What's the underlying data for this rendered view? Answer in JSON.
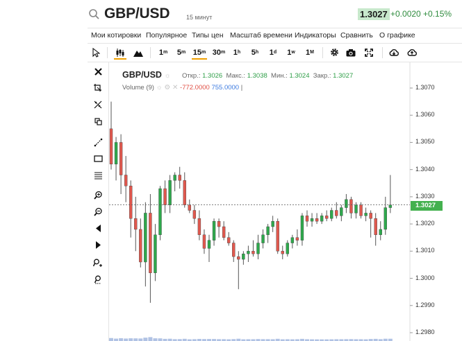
{
  "header": {
    "symbol": "GBP/USD",
    "period": "15 минут",
    "last_price": "1.3027",
    "change": "+0.0020",
    "change_pct": "+0.15%"
  },
  "menu": [
    "Мои котировки",
    "Популярное",
    "Типы цен",
    "Масштаб времени",
    "Индикаторы",
    "Сравнить",
    "О графике"
  ],
  "toolbar": {
    "timeframes": [
      {
        "n": "1",
        "u": "m"
      },
      {
        "n": "5",
        "u": "m"
      },
      {
        "n": "15",
        "u": "m"
      },
      {
        "n": "30",
        "u": "m"
      },
      {
        "n": "1",
        "u": "h"
      },
      {
        "n": "5",
        "u": "h"
      },
      {
        "n": "1",
        "u": "d"
      },
      {
        "n": "1",
        "u": "w"
      },
      {
        "n": "1",
        "u": "M"
      }
    ],
    "active_timeframe": "15m",
    "tool_icons": [
      "cursor-icon",
      "candles-icon",
      "mountain-icon",
      "gear-icon",
      "camera-icon",
      "fullscreen-icon",
      "cloud-download-icon",
      "cloud-upload-icon"
    ]
  },
  "left_tools": [
    "close-icon",
    "crop-icon",
    "magnet-icon",
    "copy-icon",
    "trend-line-icon",
    "rectangle-icon",
    "horizontal-lines-icon",
    "zoom-in-icon",
    "zoom-out-icon",
    "scroll-left-icon",
    "scroll-right-icon",
    "pointer-plus-icon",
    "pointer-reset-icon"
  ],
  "legend": {
    "symbol": "GBP/USD",
    "open_label": "Откр.:",
    "open": "1.3026",
    "high_label": "Макс.:",
    "high": "1.3038",
    "low_label": "Мин.:",
    "low": "1.3024",
    "close_label": "Закр.:",
    "close": "1.3027",
    "volume_label": "Volume (9)",
    "volume_neg": "-772.0000",
    "volume_pos": "755.0000"
  },
  "chart_data": {
    "type": "candlestick",
    "y_axis": {
      "ticks": [
        "1.3070",
        "1.3060",
        "1.3050",
        "1.3040",
        "1.3030",
        "1.3020",
        "1.3010",
        "1.3000",
        "1.2990",
        "1.2980"
      ],
      "range": [
        1.2978,
        1.3077
      ]
    },
    "last_price": 1.3027,
    "last_price_label": "1.3027",
    "colors": {
      "up": "#2ea84c",
      "down": "#e0584e",
      "wick": "#555555"
    },
    "candles": [
      {
        "o": 1.3055,
        "h": 1.3065,
        "l": 1.304,
        "c": 1.3042
      },
      {
        "o": 1.3042,
        "h": 1.3052,
        "l": 1.3036,
        "c": 1.305
      },
      {
        "o": 1.305,
        "h": 1.3053,
        "l": 1.3031,
        "c": 1.3038
      },
      {
        "o": 1.3038,
        "h": 1.3045,
        "l": 1.3028,
        "c": 1.3034
      },
      {
        "o": 1.3034,
        "h": 1.3036,
        "l": 1.3015,
        "c": 1.3022
      },
      {
        "o": 1.3022,
        "h": 1.303,
        "l": 1.301,
        "c": 1.3018
      },
      {
        "o": 1.3018,
        "h": 1.3022,
        "l": 1.3004,
        "c": 1.3006
      },
      {
        "o": 1.3006,
        "h": 1.3028,
        "l": 1.2997,
        "c": 1.3024
      },
      {
        "o": 1.3024,
        "h": 1.3031,
        "l": 1.2991,
        "c": 1.3002
      },
      {
        "o": 1.3002,
        "h": 1.302,
        "l": 1.2999,
        "c": 1.3016
      },
      {
        "o": 1.3016,
        "h": 1.3034,
        "l": 1.3014,
        "c": 1.3033
      },
      {
        "o": 1.3033,
        "h": 1.3036,
        "l": 1.3024,
        "c": 1.3027
      },
      {
        "o": 1.3027,
        "h": 1.3038,
        "l": 1.3024,
        "c": 1.3036
      },
      {
        "o": 1.3036,
        "h": 1.3039,
        "l": 1.3032,
        "c": 1.3038
      },
      {
        "o": 1.3038,
        "h": 1.3041,
        "l": 1.3033,
        "c": 1.3036
      },
      {
        "o": 1.3036,
        "h": 1.3039,
        "l": 1.3026,
        "c": 1.3027
      },
      {
        "o": 1.3027,
        "h": 1.3029,
        "l": 1.3024,
        "c": 1.3025
      },
      {
        "o": 1.3025,
        "h": 1.3027,
        "l": 1.302,
        "c": 1.3022
      },
      {
        "o": 1.3022,
        "h": 1.3025,
        "l": 1.3014,
        "c": 1.3016
      },
      {
        "o": 1.3016,
        "h": 1.3018,
        "l": 1.3009,
        "c": 1.3011
      },
      {
        "o": 1.3011,
        "h": 1.3016,
        "l": 1.3006,
        "c": 1.3014
      },
      {
        "o": 1.3014,
        "h": 1.3022,
        "l": 1.3012,
        "c": 1.3021
      },
      {
        "o": 1.3021,
        "h": 1.3022,
        "l": 1.3015,
        "c": 1.3019
      },
      {
        "o": 1.3019,
        "h": 1.3021,
        "l": 1.3014,
        "c": 1.3015
      },
      {
        "o": 1.3015,
        "h": 1.3017,
        "l": 1.3012,
        "c": 1.3013
      },
      {
        "o": 1.3013,
        "h": 1.3014,
        "l": 1.3006,
        "c": 1.3008
      },
      {
        "o": 1.3008,
        "h": 1.301,
        "l": 1.2996,
        "c": 1.3007
      },
      {
        "o": 1.3007,
        "h": 1.301,
        "l": 1.3005,
        "c": 1.3009
      },
      {
        "o": 1.3009,
        "h": 1.3012,
        "l": 1.3006,
        "c": 1.301
      },
      {
        "o": 1.301,
        "h": 1.3014,
        "l": 1.3008,
        "c": 1.3009
      },
      {
        "o": 1.3009,
        "h": 1.3016,
        "l": 1.3007,
        "c": 1.3013
      },
      {
        "o": 1.3013,
        "h": 1.3018,
        "l": 1.3011,
        "c": 1.3016
      },
      {
        "o": 1.3016,
        "h": 1.302,
        "l": 1.3013,
        "c": 1.3019
      },
      {
        "o": 1.3019,
        "h": 1.3023,
        "l": 1.3017,
        "c": 1.3021
      },
      {
        "o": 1.3021,
        "h": 1.3022,
        "l": 1.3009,
        "c": 1.301
      },
      {
        "o": 1.301,
        "h": 1.3012,
        "l": 1.3007,
        "c": 1.3009
      },
      {
        "o": 1.3009,
        "h": 1.3014,
        "l": 1.3008,
        "c": 1.3013
      },
      {
        "o": 1.3013,
        "h": 1.3016,
        "l": 1.3011,
        "c": 1.3015
      },
      {
        "o": 1.3015,
        "h": 1.3018,
        "l": 1.3012,
        "c": 1.3014
      },
      {
        "o": 1.3014,
        "h": 1.3024,
        "l": 1.3012,
        "c": 1.3023
      },
      {
        "o": 1.3023,
        "h": 1.3025,
        "l": 1.3019,
        "c": 1.3021
      },
      {
        "o": 1.3021,
        "h": 1.3024,
        "l": 1.3019,
        "c": 1.3022
      },
      {
        "o": 1.3022,
        "h": 1.3024,
        "l": 1.302,
        "c": 1.3021
      },
      {
        "o": 1.3021,
        "h": 1.3024,
        "l": 1.302,
        "c": 1.3023
      },
      {
        "o": 1.3023,
        "h": 1.3025,
        "l": 1.3021,
        "c": 1.3022
      },
      {
        "o": 1.3022,
        "h": 1.3026,
        "l": 1.3021,
        "c": 1.3025
      },
      {
        "o": 1.3025,
        "h": 1.3028,
        "l": 1.3022,
        "c": 1.3023
      },
      {
        "o": 1.3023,
        "h": 1.3027,
        "l": 1.3021,
        "c": 1.3026
      },
      {
        "o": 1.3026,
        "h": 1.3031,
        "l": 1.3024,
        "c": 1.3029
      },
      {
        "o": 1.3029,
        "h": 1.303,
        "l": 1.3022,
        "c": 1.3024
      },
      {
        "o": 1.3024,
        "h": 1.3028,
        "l": 1.3022,
        "c": 1.3027
      },
      {
        "o": 1.3027,
        "h": 1.3028,
        "l": 1.3022,
        "c": 1.3023
      },
      {
        "o": 1.3023,
        "h": 1.3026,
        "l": 1.3021,
        "c": 1.3024
      },
      {
        "o": 1.3024,
        "h": 1.3025,
        "l": 1.3015,
        "c": 1.3022
      },
      {
        "o": 1.3022,
        "h": 1.3024,
        "l": 1.3012,
        "c": 1.3016
      },
      {
        "o": 1.3016,
        "h": 1.3021,
        "l": 1.3014,
        "c": 1.3018
      },
      {
        "o": 1.3018,
        "h": 1.303,
        "l": 1.3016,
        "c": 1.3026
      },
      {
        "o": 1.3026,
        "h": 1.3038,
        "l": 1.3024,
        "c": 1.3027
      }
    ]
  }
}
